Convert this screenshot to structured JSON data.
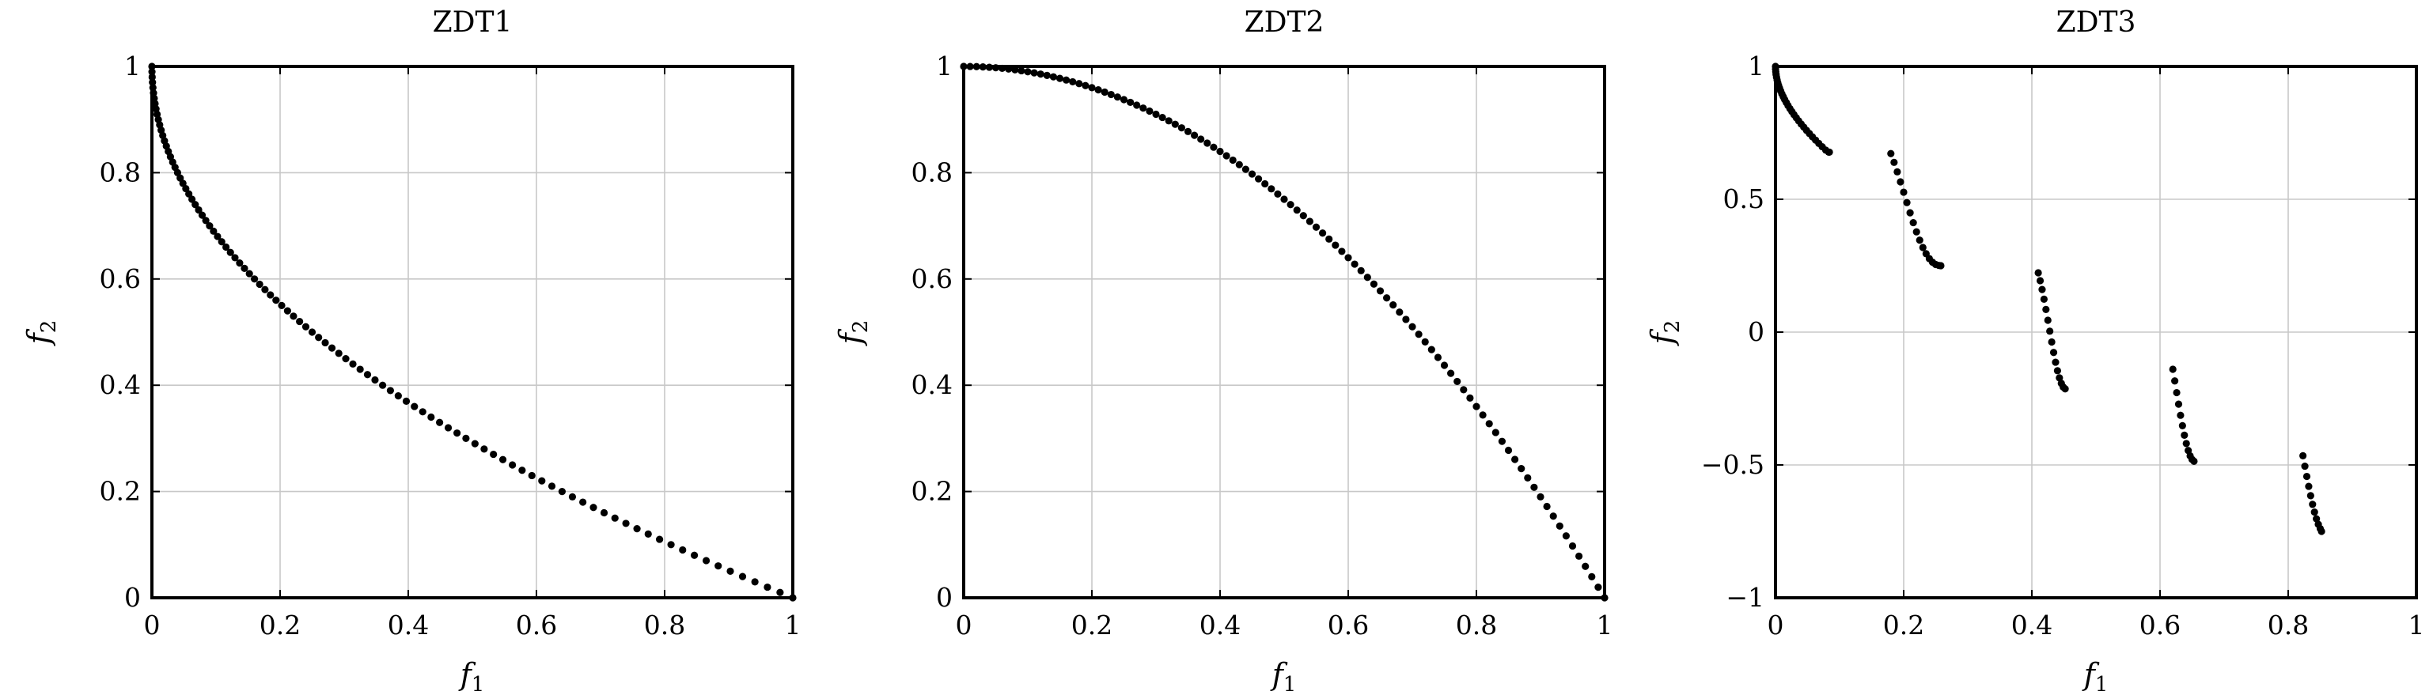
{
  "chart_data": [
    {
      "type": "scatter",
      "title": "ZDT1",
      "xlabel": "f1",
      "ylabel": "f2",
      "xlim": [
        0,
        1
      ],
      "ylim": [
        0,
        1
      ],
      "xticks": [
        0,
        0.2,
        0.4,
        0.6,
        0.8,
        1
      ],
      "yticks": [
        0,
        0.2,
        0.4,
        0.6,
        0.8,
        1
      ],
      "xtick_labels": [
        "0",
        "0.2",
        "0.4",
        "0.6",
        "0.8",
        "1"
      ],
      "ytick_labels": [
        "0",
        "0.2",
        "0.4",
        "0.6",
        "0.8",
        "1"
      ],
      "grid": true,
      "series": [
        {
          "x": [
            0,
            0.0001,
            0.0004,
            0.0009,
            0.0016,
            0.0025,
            0.0036,
            0.0049,
            0.0064,
            0.0081,
            0.01,
            0.0121,
            0.0144,
            0.0169,
            0.0196,
            0.0225,
            0.0256,
            0.0289,
            0.0324,
            0.0361,
            0.04,
            0.0441,
            0.0484,
            0.0529,
            0.0576,
            0.0625,
            0.0676,
            0.0729,
            0.0784,
            0.0841,
            0.09,
            0.0961,
            0.1024,
            0.1089,
            0.1156,
            0.1225,
            0.1296,
            0.1369,
            0.1444,
            0.1521,
            0.16,
            0.1681,
            0.1764,
            0.1849,
            0.1936,
            0.2025,
            0.2116,
            0.2209,
            0.2304,
            0.2401,
            0.25,
            0.2601,
            0.2704,
            0.2809,
            0.2916,
            0.3025,
            0.3136,
            0.3249,
            0.3364,
            0.3481,
            0.36,
            0.3721,
            0.3844,
            0.3969,
            0.4096,
            0.4225,
            0.4356,
            0.4489,
            0.4624,
            0.4761,
            0.49,
            0.5041,
            0.5184,
            0.5329,
            0.5476,
            0.5625,
            0.5776,
            0.5929,
            0.6084,
            0.6241,
            0.64,
            0.6561,
            0.6724,
            0.6889,
            0.7056,
            0.7225,
            0.7396,
            0.7569,
            0.7744,
            0.7921,
            0.81,
            0.8281,
            0.8464,
            0.8649,
            0.8836,
            0.9025,
            0.9216,
            0.9409,
            0.9604,
            0.9801,
            1
          ],
          "y": [
            1,
            0.99,
            0.98,
            0.97,
            0.96,
            0.95,
            0.94,
            0.93,
            0.92,
            0.91,
            0.9,
            0.89,
            0.88,
            0.87,
            0.86,
            0.85,
            0.84,
            0.83,
            0.82,
            0.81,
            0.8,
            0.79,
            0.78,
            0.77,
            0.76,
            0.75,
            0.74,
            0.73,
            0.72,
            0.71,
            0.7,
            0.69,
            0.68,
            0.67,
            0.66,
            0.65,
            0.64,
            0.63,
            0.62,
            0.61,
            0.6,
            0.59,
            0.58,
            0.57,
            0.56,
            0.55,
            0.54,
            0.53,
            0.52,
            0.51,
            0.5,
            0.49,
            0.48,
            0.47,
            0.46,
            0.45,
            0.44,
            0.43,
            0.42,
            0.41,
            0.4,
            0.39,
            0.38,
            0.37,
            0.36,
            0.35,
            0.34,
            0.33,
            0.32,
            0.31,
            0.3,
            0.29,
            0.28,
            0.27,
            0.26,
            0.25,
            0.24,
            0.23,
            0.22,
            0.21,
            0.2,
            0.19,
            0.18,
            0.17,
            0.16,
            0.15,
            0.14,
            0.13,
            0.12,
            0.11,
            0.1,
            0.09,
            0.08,
            0.07,
            0.06,
            0.05,
            0.04,
            0.03,
            0.02,
            0.01,
            0
          ]
        }
      ]
    },
    {
      "type": "scatter",
      "title": "ZDT2",
      "xlabel": "f1",
      "ylabel": "f2",
      "xlim": [
        0,
        1
      ],
      "ylim": [
        0,
        1
      ],
      "xticks": [
        0,
        0.2,
        0.4,
        0.6,
        0.8,
        1
      ],
      "yticks": [
        0,
        0.2,
        0.4,
        0.6,
        0.8,
        1
      ],
      "xtick_labels": [
        "0",
        "0.2",
        "0.4",
        "0.6",
        "0.8",
        "1"
      ],
      "ytick_labels": [
        "0",
        "0.2",
        "0.4",
        "0.6",
        "0.8",
        "1"
      ],
      "grid": true,
      "series": [
        {
          "x": [
            0,
            0.01,
            0.02,
            0.03,
            0.04,
            0.05,
            0.06,
            0.07,
            0.08,
            0.09,
            0.1,
            0.11,
            0.12,
            0.13,
            0.14,
            0.15,
            0.16,
            0.17,
            0.18,
            0.19,
            0.2,
            0.21,
            0.22,
            0.23,
            0.24,
            0.25,
            0.26,
            0.27,
            0.28,
            0.29,
            0.3,
            0.31,
            0.32,
            0.33,
            0.34,
            0.35,
            0.36,
            0.37,
            0.38,
            0.39,
            0.4,
            0.41,
            0.42,
            0.43,
            0.44,
            0.45,
            0.46,
            0.47,
            0.48,
            0.49,
            0.5,
            0.51,
            0.52,
            0.53,
            0.54,
            0.55,
            0.56,
            0.57,
            0.58,
            0.59,
            0.6,
            0.61,
            0.62,
            0.63,
            0.64,
            0.65,
            0.66,
            0.67,
            0.68,
            0.69,
            0.7,
            0.71,
            0.72,
            0.73,
            0.74,
            0.75,
            0.76,
            0.77,
            0.78,
            0.79,
            0.8,
            0.81,
            0.82,
            0.83,
            0.84,
            0.85,
            0.86,
            0.87,
            0.88,
            0.89,
            0.9,
            0.91,
            0.92,
            0.93,
            0.94,
            0.95,
            0.96,
            0.97,
            0.98,
            0.99,
            1
          ],
          "y": [
            1,
            0.9999,
            0.9996,
            0.9991,
            0.9984,
            0.9975,
            0.9964,
            0.9951,
            0.9936,
            0.9919,
            0.99,
            0.9879,
            0.9856,
            0.9831,
            0.9804,
            0.9775,
            0.9744,
            0.9711,
            0.9676,
            0.9639,
            0.96,
            0.9559,
            0.9516,
            0.9471,
            0.9424,
            0.9375,
            0.9324,
            0.9271,
            0.9216,
            0.9159,
            0.91,
            0.9039,
            0.8976,
            0.8911,
            0.8844,
            0.8775,
            0.8704,
            0.8631,
            0.8556,
            0.8479,
            0.84,
            0.8319,
            0.8236,
            0.8151,
            0.8064,
            0.7975,
            0.7884,
            0.7791,
            0.7696,
            0.7599,
            0.75,
            0.7399,
            0.7296,
            0.7191,
            0.7084,
            0.6975,
            0.6864,
            0.6751,
            0.6636,
            0.6519,
            0.64,
            0.6279,
            0.6156,
            0.6031,
            0.5904,
            0.5775,
            0.5644,
            0.5511,
            0.5376,
            0.5239,
            0.51,
            0.4959,
            0.4816,
            0.4671,
            0.4524,
            0.4375,
            0.4224,
            0.4071,
            0.3916,
            0.3759,
            0.36,
            0.3439,
            0.3276,
            0.3111,
            0.2944,
            0.2775,
            0.2604,
            0.2431,
            0.2256,
            0.2079,
            0.19,
            0.1719,
            0.1536,
            0.1351,
            0.1164,
            0.0975,
            0.0784,
            0.0591,
            0.0396,
            0.0199,
            0
          ]
        }
      ]
    },
    {
      "type": "scatter",
      "title": "ZDT3",
      "xlabel": "f1",
      "ylabel": "f2",
      "xlim": [
        0,
        1
      ],
      "ylim": [
        -1,
        1
      ],
      "xticks": [
        0,
        0.2,
        0.4,
        0.6,
        0.8,
        1
      ],
      "yticks": [
        -1,
        -0.5,
        0,
        0.5,
        1
      ],
      "xtick_labels": [
        "0",
        "0.2",
        "0.4",
        "0.6",
        "0.8",
        "1"
      ],
      "ytick_labels": [
        "−1",
        "−0.5",
        "0",
        "0.5",
        "1"
      ],
      "grid": true,
      "series": [
        {
          "x": [
            0,
            0.0001,
            0.0004,
            0.0009,
            0.0016,
            0.0025,
            0.0036,
            0.0049,
            0.0064,
            0.0081,
            0.01,
            0.0121,
            0.0144,
            0.0169,
            0.0196,
            0.0225,
            0.0256,
            0.0289,
            0.0324,
            0.0361,
            0.04,
            0.0441,
            0.0484,
            0.0529,
            0.0576,
            0.0625,
            0.0676,
            0.0729,
            0.0784,
            0.0841,
            0.083,
            0.18,
            0.185,
            0.19,
            0.195,
            0.2,
            0.205,
            0.21,
            0.215,
            0.22,
            0.225,
            0.23,
            0.235,
            0.24,
            0.245,
            0.25,
            0.255,
            0.258,
            0.41,
            0.413,
            0.416,
            0.419,
            0.422,
            0.425,
            0.428,
            0.431,
            0.434,
            0.437,
            0.44,
            0.443,
            0.446,
            0.449,
            0.452,
            0.62,
            0.623,
            0.626,
            0.629,
            0.632,
            0.635,
            0.638,
            0.641,
            0.644,
            0.647,
            0.65,
            0.653,
            0.823,
            0.826,
            0.829,
            0.832,
            0.835,
            0.838,
            0.841,
            0.844,
            0.847,
            0.85,
            0.852
          ],
          "y": [
            1,
            0.9899,
            0.9799,
            0.9698,
            0.9597,
            0.9494,
            0.9391,
            0.9286,
            0.9181,
            0.9074,
            0.8967,
            0.8858,
            0.8749,
            0.8638,
            0.8526,
            0.8413,
            0.8299,
            0.8184,
            0.8068,
            0.7951,
            0.7833,
            0.7714,
            0.7594,
            0.7473,
            0.735,
            0.7227,
            0.7102,
            0.6977,
            0.685,
            0.6773,
            0.6773,
            0.6718,
            0.6389,
            0.6032,
            0.5655,
            0.5266,
            0.4875,
            0.449,
            0.412,
            0.3774,
            0.346,
            0.3184,
            0.2951,
            0.2766,
            0.263,
            0.2545,
            0.2509,
            0.25,
            0.2232,
            0.1936,
            0.1603,
            0.1239,
            0.0851,
            0.0447,
            0.0035,
            -0.0373,
            -0.0766,
            -0.1133,
            -0.1453,
            -0.1722,
            -0.1929,
            -0.2068,
            -0.2135,
            -0.1398,
            -0.1837,
            -0.2278,
            -0.2713,
            -0.3131,
            -0.3523,
            -0.3881,
            -0.4194,
            -0.4456,
            -0.4656,
            -0.4793,
            -0.4862,
            -0.4654,
            -0.5047,
            -0.5433,
            -0.5806,
            -0.6158,
            -0.6483,
            -0.6775,
            -0.7027,
            -0.7236,
            -0.7397,
            -0.75
          ]
        }
      ]
    }
  ]
}
